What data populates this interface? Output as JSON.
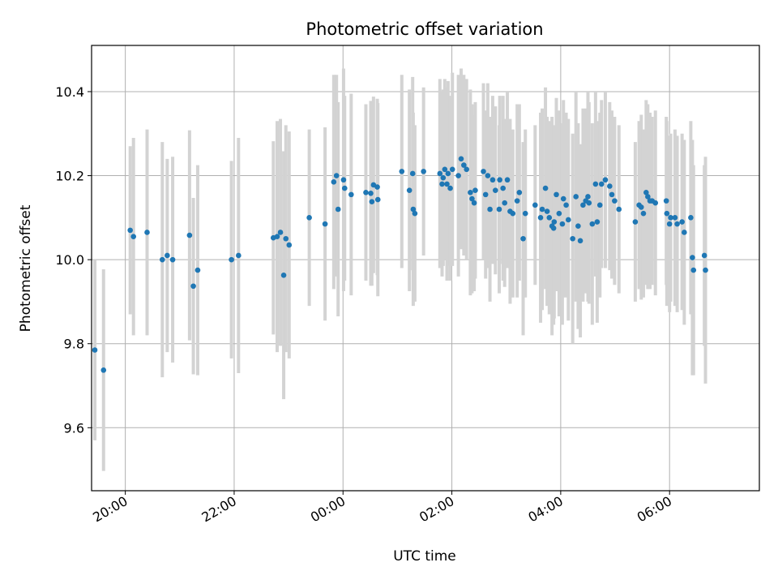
{
  "chart_data": {
    "type": "scatter",
    "title": "Photometric offset variation",
    "xlabel": "UTC time",
    "ylabel": "Photometric offset",
    "x_unit": "UTC time (hours past 20:00; ticks every 2 h)",
    "xlim": [
      -0.62,
      11.65
    ],
    "ylim": [
      9.45,
      10.51
    ],
    "x_ticks": [
      0,
      2,
      4,
      6,
      8,
      10
    ],
    "x_tick_labels": [
      "20:00",
      "22:00",
      "00:00",
      "02:00",
      "04:00",
      "06:00"
    ],
    "y_ticks": [
      9.6,
      9.8,
      10.0,
      10.2,
      10.4
    ],
    "y_tick_labels": [
      "9.6",
      "9.8",
      "10.0",
      "10.2",
      "10.4"
    ],
    "grid": true,
    "colors": {
      "marker": "#1f77b4",
      "errorbar": "#d3d3d3",
      "grid": "#b0b0b0"
    },
    "points": [
      [
        -0.56,
        9.785,
        0.215
      ],
      [
        -0.4,
        9.737,
        0.24
      ],
      [
        0.09,
        10.07,
        0.2
      ],
      [
        0.15,
        10.055,
        0.235
      ],
      [
        0.4,
        10.065,
        0.245
      ],
      [
        0.68,
        10.0,
        0.28
      ],
      [
        0.77,
        10.01,
        0.23
      ],
      [
        0.87,
        10.0,
        0.245
      ],
      [
        1.18,
        10.058,
        0.25
      ],
      [
        1.25,
        9.937,
        0.21
      ],
      [
        1.33,
        9.975,
        0.25
      ],
      [
        1.95,
        10.0,
        0.235
      ],
      [
        2.08,
        10.01,
        0.28
      ],
      [
        2.72,
        10.052,
        0.23
      ],
      [
        2.79,
        10.055,
        0.275
      ],
      [
        2.85,
        10.065,
        0.27
      ],
      [
        2.91,
        9.963,
        0.295
      ],
      [
        2.95,
        10.05,
        0.27
      ],
      [
        3.01,
        10.035,
        0.27
      ],
      [
        3.38,
        10.1,
        0.21
      ],
      [
        3.67,
        10.085,
        0.23
      ],
      [
        3.83,
        10.185,
        0.255
      ],
      [
        3.91,
        10.12,
        0.255
      ],
      [
        3.88,
        10.2,
        0.24
      ],
      [
        4.03,
        10.17,
        0.22
      ],
      [
        4.01,
        10.19,
        0.265
      ],
      [
        4.15,
        10.155,
        0.24
      ],
      [
        4.42,
        10.16,
        0.21
      ],
      [
        4.51,
        10.158,
        0.22
      ],
      [
        4.53,
        10.138,
        0.2
      ],
      [
        4.56,
        10.178,
        0.21
      ],
      [
        4.63,
        10.173,
        0.21
      ],
      [
        4.64,
        10.143,
        0.23
      ],
      [
        5.08,
        10.21,
        0.23
      ],
      [
        5.22,
        10.165,
        0.24
      ],
      [
        5.28,
        10.205,
        0.23
      ],
      [
        5.29,
        10.12,
        0.23
      ],
      [
        5.32,
        10.11,
        0.21
      ],
      [
        5.48,
        10.21,
        0.2
      ],
      [
        5.78,
        10.205,
        0.225
      ],
      [
        5.82,
        10.18,
        0.22
      ],
      [
        5.84,
        10.195,
        0.21
      ],
      [
        5.87,
        10.215,
        0.215
      ],
      [
        5.91,
        10.18,
        0.23
      ],
      [
        5.93,
        10.205,
        0.22
      ],
      [
        5.97,
        10.17,
        0.22
      ],
      [
        6.01,
        10.215,
        0.23
      ],
      [
        6.12,
        10.2,
        0.24
      ],
      [
        6.17,
        10.24,
        0.215
      ],
      [
        6.22,
        10.225,
        0.215
      ],
      [
        6.27,
        10.215,
        0.215
      ],
      [
        6.34,
        10.16,
        0.245
      ],
      [
        6.37,
        10.145,
        0.225
      ],
      [
        6.41,
        10.135,
        0.21
      ],
      [
        6.43,
        10.165,
        0.21
      ],
      [
        6.58,
        10.21,
        0.21
      ],
      [
        6.62,
        10.155,
        0.2
      ],
      [
        6.66,
        10.2,
        0.22
      ],
      [
        6.7,
        10.12,
        0.22
      ],
      [
        6.75,
        10.19,
        0.2
      ],
      [
        6.8,
        10.165,
        0.2
      ],
      [
        6.87,
        10.12,
        0.2
      ],
      [
        6.88,
        10.19,
        0.2
      ],
      [
        6.94,
        10.17,
        0.22
      ],
      [
        6.97,
        10.135,
        0.2
      ],
      [
        7.02,
        10.19,
        0.21
      ],
      [
        7.07,
        10.115,
        0.22
      ],
      [
        7.12,
        10.11,
        0.2
      ],
      [
        7.2,
        10.14,
        0.23
      ],
      [
        7.24,
        10.16,
        0.21
      ],
      [
        7.31,
        10.05,
        0.23
      ],
      [
        7.35,
        10.11,
        0.2
      ],
      [
        7.53,
        10.13,
        0.19
      ],
      [
        7.63,
        10.1,
        0.25
      ],
      [
        7.66,
        10.12,
        0.24
      ],
      [
        7.72,
        10.17,
        0.24
      ],
      [
        7.75,
        10.115,
        0.225
      ],
      [
        7.79,
        10.1,
        0.23
      ],
      [
        7.84,
        10.08,
        0.26
      ],
      [
        7.87,
        10.075,
        0.23
      ],
      [
        7.88,
        10.09,
        0.23
      ],
      [
        7.92,
        10.155,
        0.23
      ],
      [
        7.97,
        10.11,
        0.245
      ],
      [
        8.03,
        10.085,
        0.24
      ],
      [
        8.05,
        10.145,
        0.235
      ],
      [
        8.1,
        10.13,
        0.22
      ],
      [
        8.14,
        10.095,
        0.24
      ],
      [
        8.22,
        10.05,
        0.25
      ],
      [
        8.28,
        10.15,
        0.25
      ],
      [
        8.32,
        10.08,
        0.245
      ],
      [
        8.36,
        10.045,
        0.23
      ],
      [
        8.41,
        10.13,
        0.23
      ],
      [
        8.46,
        10.14,
        0.22
      ],
      [
        8.5,
        10.15,
        0.25
      ],
      [
        8.52,
        10.135,
        0.24
      ],
      [
        8.58,
        10.085,
        0.24
      ],
      [
        8.64,
        10.18,
        0.22
      ],
      [
        8.67,
        10.09,
        0.24
      ],
      [
        8.72,
        10.13,
        0.22
      ],
      [
        8.75,
        10.18,
        0.2
      ],
      [
        8.82,
        10.19,
        0.21
      ],
      [
        8.9,
        10.175,
        0.2
      ],
      [
        8.94,
        10.155,
        0.2
      ],
      [
        8.99,
        10.14,
        0.2
      ],
      [
        9.07,
        10.12,
        0.2
      ],
      [
        9.37,
        10.09,
        0.19
      ],
      [
        9.44,
        10.13,
        0.2
      ],
      [
        9.48,
        10.125,
        0.22
      ],
      [
        9.52,
        10.11,
        0.2
      ],
      [
        9.57,
        10.16,
        0.22
      ],
      [
        9.6,
        10.15,
        0.22
      ],
      [
        9.64,
        10.14,
        0.21
      ],
      [
        9.68,
        10.14,
        0.2
      ],
      [
        9.74,
        10.135,
        0.22
      ],
      [
        9.94,
        10.14,
        0.2
      ],
      [
        9.95,
        10.11,
        0.22
      ],
      [
        10.0,
        10.085,
        0.21
      ],
      [
        10.02,
        10.1,
        0.2
      ],
      [
        10.1,
        10.1,
        0.21
      ],
      [
        10.14,
        10.085,
        0.21
      ],
      [
        10.23,
        10.09,
        0.21
      ],
      [
        10.27,
        10.065,
        0.22
      ],
      [
        10.39,
        10.1,
        0.23
      ],
      [
        10.42,
        10.005,
        0.28
      ],
      [
        10.44,
        9.975,
        0.25
      ],
      [
        10.64,
        10.01,
        0.215
      ],
      [
        10.66,
        9.975,
        0.27
      ]
    ]
  }
}
